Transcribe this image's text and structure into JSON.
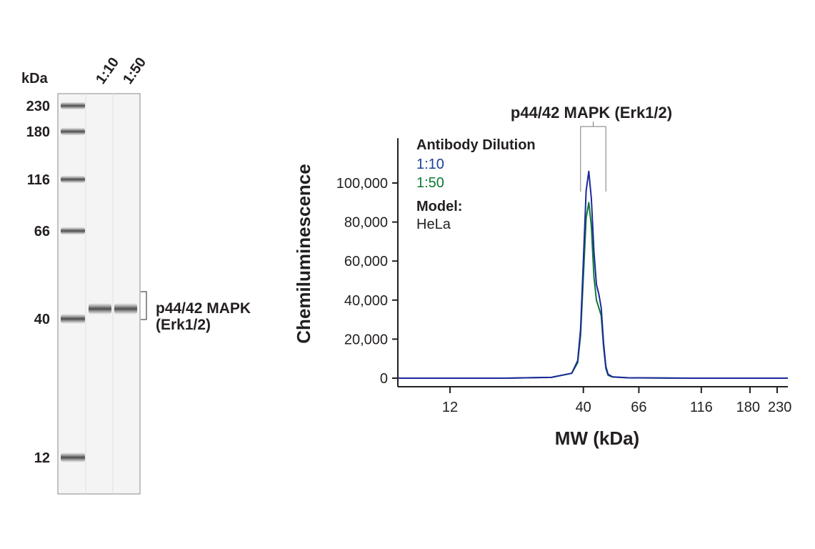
{
  "blot": {
    "kda_label": "kDa",
    "lanes": [
      "1:10",
      "1:50"
    ],
    "markers": [
      {
        "label": "230",
        "kda": 230
      },
      {
        "label": "180",
        "kda": 180
      },
      {
        "label": "116",
        "kda": 116
      },
      {
        "label": "66",
        "kda": 66
      },
      {
        "label": "40",
        "kda": 40
      },
      {
        "label": "12",
        "kda": 12
      }
    ],
    "band_label_line1": "p44/42 MAPK",
    "band_label_line2": "(Erk1/2)",
    "band_kda": 43
  },
  "chart_data": {
    "type": "line",
    "title": "p44/42 MAPK (Erk1/2)",
    "xlabel": "MW (kDa)",
    "ylabel": "Chemiluminescence",
    "x_scale": "log",
    "x_ticks": [
      {
        "label": "12",
        "value": 12
      },
      {
        "label": "40",
        "value": 40
      },
      {
        "label": "66",
        "value": 66
      },
      {
        "label": "116",
        "value": 116
      },
      {
        "label": "180",
        "value": 180
      },
      {
        "label": "230",
        "value": 230
      }
    ],
    "xlim": [
      6,
      300
    ],
    "y_ticks": [
      {
        "label": "0",
        "value": 0
      },
      {
        "label": "20,000",
        "value": 20000
      },
      {
        "label": "40,000",
        "value": 40000
      },
      {
        "label": "60,000",
        "value": 60000
      },
      {
        "label": "80,000",
        "value": 80000
      },
      {
        "label": "100,000",
        "value": 100000
      }
    ],
    "ylim": [
      -3000,
      123000
    ],
    "grid": false,
    "legend": {
      "title": "Antibody Dilution",
      "model_title": "Model:",
      "model_value": "HeLa"
    },
    "series": [
      {
        "name": "1:10",
        "color": "#1c2a9c",
        "x": [
          6,
          20,
          30,
          36,
          38,
          39,
          40,
          41,
          42,
          43,
          44,
          45,
          46,
          47,
          48,
          49,
          50,
          52,
          60,
          100,
          300
        ],
        "y": [
          0,
          0,
          400,
          2500,
          9000,
          25000,
          60000,
          96000,
          106000,
          92000,
          65000,
          48000,
          43000,
          36000,
          18000,
          6000,
          2000,
          700,
          200,
          0,
          0
        ]
      },
      {
        "name": "1:50",
        "color": "#0f7a35",
        "x": [
          6,
          20,
          30,
          36,
          38,
          39,
          40,
          41,
          42,
          43,
          44,
          45,
          46,
          47,
          48,
          49,
          50,
          52,
          60,
          100,
          300
        ],
        "y": [
          0,
          0,
          400,
          2500,
          8000,
          22000,
          52000,
          82000,
          90000,
          78000,
          52000,
          40000,
          36000,
          32000,
          16000,
          5000,
          1500,
          600,
          200,
          0,
          0
        ]
      }
    ],
    "bracket_kda": [
      39,
      49
    ]
  }
}
